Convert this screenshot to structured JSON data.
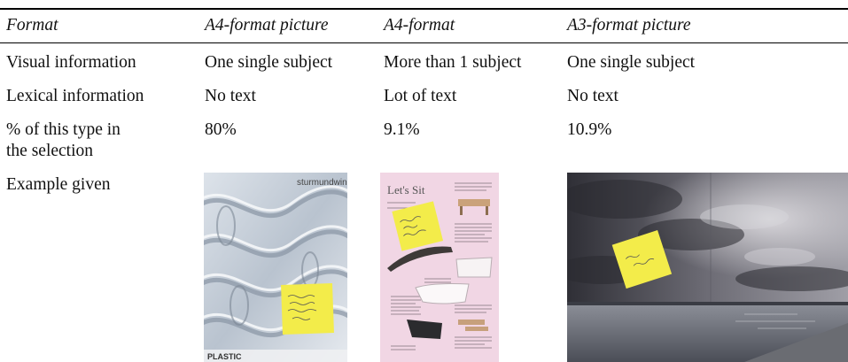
{
  "table": {
    "headers": [
      "Format",
      "A4-format picture",
      "A4-format",
      "A3-format picture"
    ],
    "rows": [
      {
        "label": "Visual information",
        "values": [
          "One single subject",
          "More than 1 subject",
          "One single subject"
        ]
      },
      {
        "label": "Lexical information",
        "values": [
          "No text",
          "Lot of text",
          "No text"
        ]
      },
      {
        "label_line1": "% of this type in",
        "label_line2": "the selection",
        "values": [
          "80%",
          "9.1%",
          "10.9%"
        ]
      },
      {
        "label": "Example given"
      }
    ]
  },
  "images": {
    "plastic": {
      "brand_text": "sturmundwind",
      "footer_text": "PLASTIC",
      "note_text": "sticky note handwriting"
    },
    "catalog": {
      "page_title": "Let's Sit",
      "note_text": "sticky note handwriting"
    },
    "sky": {
      "note_text": "sticky note handwriting"
    }
  },
  "colors": {
    "sticky_note": "#f3ec4a",
    "catalog_bg": "#f1d6e4",
    "sky_dark": "#3f3f48",
    "water": "#6f7480"
  }
}
